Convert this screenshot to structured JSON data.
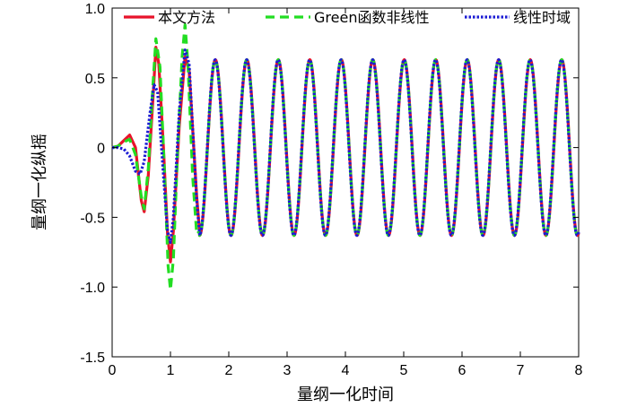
{
  "chart_data": {
    "type": "line",
    "xlabel": "量纲一化时间",
    "ylabel": "量纲一化纵摇",
    "xlim": [
      0,
      8
    ],
    "ylim": [
      -1.5,
      1.0
    ],
    "xticks": [
      0,
      1,
      2,
      3,
      4,
      5,
      6,
      7,
      8
    ],
    "xtick_labels": [
      "0",
      "1",
      "2",
      "3",
      "4",
      "5",
      "6",
      "7",
      "8"
    ],
    "yticks": [
      -1.5,
      -1.0,
      -0.5,
      0,
      0.5,
      1.0
    ],
    "ytick_labels": [
      "-1.5",
      "-1.0",
      "-0.5",
      "0",
      "0.5",
      "1.0"
    ],
    "grid": false,
    "legend_position": "top",
    "steady_state": {
      "amplitude": 0.63,
      "period": 0.54,
      "x_start": 1.5
    },
    "series": [
      {
        "name": "本文方法",
        "color": "#e8132a",
        "style": "solid",
        "transient": [
          [
            0,
            0
          ],
          [
            0.1,
            0.01
          ],
          [
            0.2,
            0.05
          ],
          [
            0.3,
            0.09
          ],
          [
            0.4,
            0.0
          ],
          [
            0.5,
            -0.38
          ],
          [
            0.55,
            -0.46
          ],
          [
            0.62,
            -0.2
          ],
          [
            0.7,
            0.35
          ],
          [
            0.75,
            0.72
          ],
          [
            0.8,
            0.6
          ],
          [
            0.88,
            0.0
          ],
          [
            0.95,
            -0.62
          ],
          [
            1.0,
            -0.82
          ],
          [
            1.05,
            -0.6
          ],
          [
            1.15,
            0.15
          ],
          [
            1.25,
            0.65
          ],
          [
            1.32,
            0.55
          ],
          [
            1.45,
            -0.35
          ],
          [
            1.5,
            -0.6
          ]
        ]
      },
      {
        "name": "Green函数非线性",
        "color": "#22dd22",
        "style": "dashed",
        "transient": [
          [
            0,
            0
          ],
          [
            0.1,
            0.01
          ],
          [
            0.2,
            0.04
          ],
          [
            0.3,
            0.06
          ],
          [
            0.4,
            -0.05
          ],
          [
            0.5,
            -0.35
          ],
          [
            0.55,
            -0.44
          ],
          [
            0.62,
            -0.15
          ],
          [
            0.7,
            0.45
          ],
          [
            0.75,
            0.78
          ],
          [
            0.82,
            0.58
          ],
          [
            0.9,
            -0.2
          ],
          [
            0.96,
            -0.85
          ],
          [
            1.0,
            -1.02
          ],
          [
            1.05,
            -0.8
          ],
          [
            1.12,
            -0.05
          ],
          [
            1.2,
            0.65
          ],
          [
            1.25,
            0.88
          ],
          [
            1.3,
            0.6
          ],
          [
            1.38,
            -0.2
          ],
          [
            1.45,
            -0.62
          ],
          [
            1.5,
            -0.6
          ]
        ]
      },
      {
        "name": "线性时域",
        "color": "#1b1bd4",
        "style": "dotted",
        "transient": [
          [
            0,
            0
          ],
          [
            0.1,
            0.0
          ],
          [
            0.2,
            -0.01
          ],
          [
            0.3,
            -0.06
          ],
          [
            0.4,
            -0.17
          ],
          [
            0.48,
            -0.19
          ],
          [
            0.55,
            -0.1
          ],
          [
            0.65,
            0.25
          ],
          [
            0.72,
            0.45
          ],
          [
            0.78,
            0.4
          ],
          [
            0.88,
            -0.2
          ],
          [
            0.95,
            -0.6
          ],
          [
            1.0,
            -0.68
          ],
          [
            1.05,
            -0.5
          ],
          [
            1.15,
            0.25
          ],
          [
            1.25,
            0.7
          ],
          [
            1.32,
            0.6
          ],
          [
            1.45,
            -0.38
          ],
          [
            1.5,
            -0.62
          ]
        ]
      }
    ]
  }
}
